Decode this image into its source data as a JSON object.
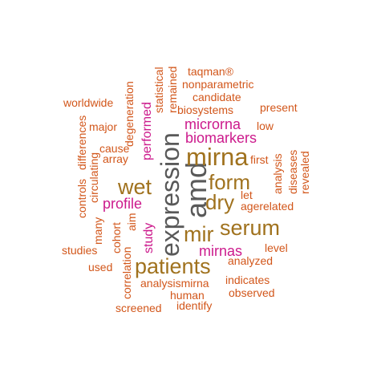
{
  "palette": {
    "gray": "#595959",
    "brown": "#a0721e",
    "magenta": "#cc1a8c",
    "orange": "#d2561a"
  },
  "words": [
    {
      "text": "expression",
      "weight": 10,
      "color": "gray",
      "vertical": true
    },
    {
      "text": "amd",
      "weight": 9,
      "color": "gray",
      "vertical": true
    },
    {
      "text": "mirna",
      "weight": 8,
      "color": "brown",
      "vertical": false
    },
    {
      "text": "patients",
      "weight": 7,
      "color": "brown",
      "vertical": false
    },
    {
      "text": "serum",
      "weight": 7,
      "color": "brown",
      "vertical": false
    },
    {
      "text": "form",
      "weight": 7,
      "color": "brown",
      "vertical": false
    },
    {
      "text": "wet",
      "weight": 7,
      "color": "brown",
      "vertical": false
    },
    {
      "text": "dry",
      "weight": 7,
      "color": "brown",
      "vertical": false
    },
    {
      "text": "mir",
      "weight": 7,
      "color": "brown",
      "vertical": false
    },
    {
      "text": "microrna",
      "weight": 5,
      "color": "magenta",
      "vertical": false
    },
    {
      "text": "biomarkers",
      "weight": 5,
      "color": "magenta",
      "vertical": false
    },
    {
      "text": "profile",
      "weight": 5,
      "color": "magenta",
      "vertical": false
    },
    {
      "text": "mirnas",
      "weight": 5,
      "color": "magenta",
      "vertical": false
    },
    {
      "text": "performed",
      "weight": 5,
      "color": "magenta",
      "vertical": true
    },
    {
      "text": "study",
      "weight": 5,
      "color": "magenta",
      "vertical": true
    },
    {
      "text": "taqman®",
      "weight": 3,
      "color": "orange",
      "vertical": false
    },
    {
      "text": "nonparametric",
      "weight": 3,
      "color": "orange",
      "vertical": false
    },
    {
      "text": "candidate",
      "weight": 3,
      "color": "orange",
      "vertical": false
    },
    {
      "text": "biosystems",
      "weight": 3,
      "color": "orange",
      "vertical": false
    },
    {
      "text": "present",
      "weight": 3,
      "color": "orange",
      "vertical": false
    },
    {
      "text": "worldwide",
      "weight": 3,
      "color": "orange",
      "vertical": false
    },
    {
      "text": "major",
      "weight": 3,
      "color": "orange",
      "vertical": false
    },
    {
      "text": "low",
      "weight": 3,
      "color": "orange",
      "vertical": false
    },
    {
      "text": "cause",
      "weight": 3,
      "color": "orange",
      "vertical": false
    },
    {
      "text": "array",
      "weight": 3,
      "color": "orange",
      "vertical": false
    },
    {
      "text": "first",
      "weight": 3,
      "color": "orange",
      "vertical": false
    },
    {
      "text": "let",
      "weight": 3,
      "color": "orange",
      "vertical": false
    },
    {
      "text": "agerelated",
      "weight": 3,
      "color": "orange",
      "vertical": false
    },
    {
      "text": "level",
      "weight": 3,
      "color": "orange",
      "vertical": false
    },
    {
      "text": "analyzed",
      "weight": 3,
      "color": "orange",
      "vertical": false
    },
    {
      "text": "studies",
      "weight": 3,
      "color": "orange",
      "vertical": false
    },
    {
      "text": "used",
      "weight": 3,
      "color": "orange",
      "vertical": false
    },
    {
      "text": "analysismirna",
      "weight": 3,
      "color": "orange",
      "vertical": false
    },
    {
      "text": "indicates",
      "weight": 3,
      "color": "orange",
      "vertical": false
    },
    {
      "text": "human",
      "weight": 3,
      "color": "orange",
      "vertical": false
    },
    {
      "text": "observed",
      "weight": 3,
      "color": "orange",
      "vertical": false
    },
    {
      "text": "identify",
      "weight": 3,
      "color": "orange",
      "vertical": false
    },
    {
      "text": "screened",
      "weight": 3,
      "color": "orange",
      "vertical": false
    },
    {
      "text": "degeneration",
      "weight": 3,
      "color": "orange",
      "vertical": true
    },
    {
      "text": "statistical",
      "weight": 3,
      "color": "orange",
      "vertical": true
    },
    {
      "text": "remained",
      "weight": 3,
      "color": "orange",
      "vertical": true
    },
    {
      "text": "differences",
      "weight": 3,
      "color": "orange",
      "vertical": true
    },
    {
      "text": "controls",
      "weight": 3,
      "color": "orange",
      "vertical": true
    },
    {
      "text": "circulating",
      "weight": 3,
      "color": "orange",
      "vertical": true
    },
    {
      "text": "aim",
      "weight": 3,
      "color": "orange",
      "vertical": true
    },
    {
      "text": "many",
      "weight": 3,
      "color": "orange",
      "vertical": true
    },
    {
      "text": "cohort",
      "weight": 3,
      "color": "orange",
      "vertical": true
    },
    {
      "text": "correlation",
      "weight": 3,
      "color": "orange",
      "vertical": true
    },
    {
      "text": "analysis",
      "weight": 3,
      "color": "orange",
      "vertical": true
    },
    {
      "text": "diseases",
      "weight": 3,
      "color": "orange",
      "vertical": true
    },
    {
      "text": "revealed",
      "weight": 3,
      "color": "orange",
      "vertical": true
    }
  ]
}
